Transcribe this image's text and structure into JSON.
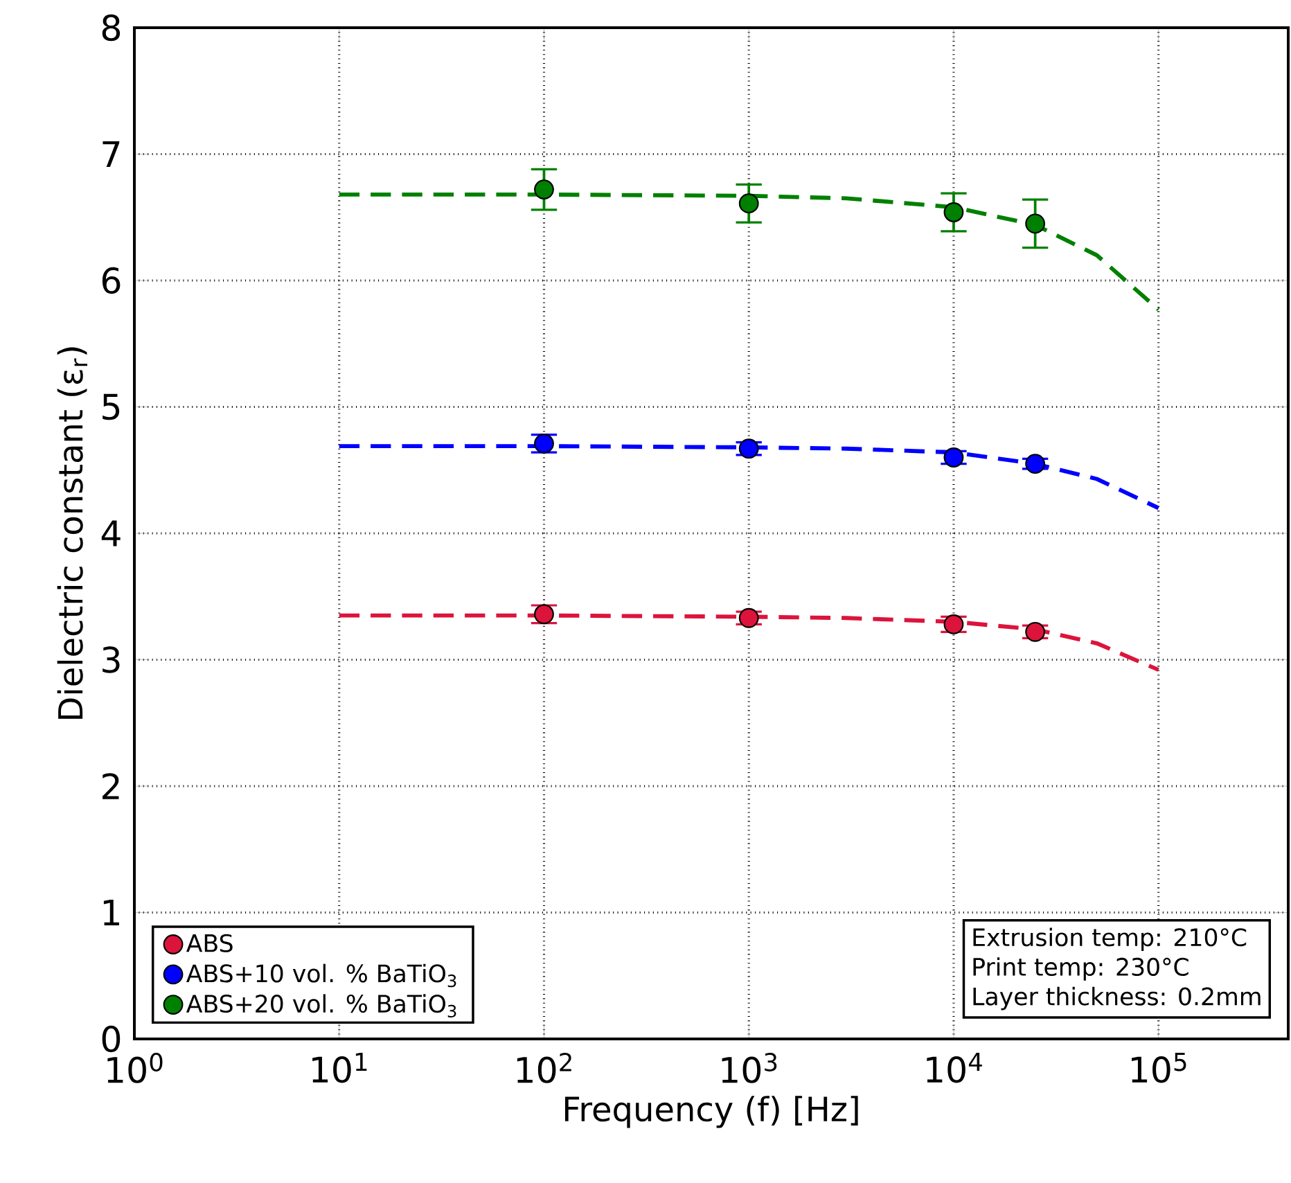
{
  "chart_data": {
    "type": "scatter",
    "xlabel": "Frequency (f) [Hz]",
    "ylabel": "Dielectric constant (ε$_{r}$)",
    "log": "x",
    "grid": true,
    "legend": "bottom left",
    "xlim": [
      1,
      430000
    ],
    "ylim": [
      0,
      8
    ],
    "xticks": [
      {
        "value": 1,
        "label": "10$^{0}$"
      },
      {
        "value": 10,
        "label": "10$^{1}$"
      },
      {
        "value": 100,
        "label": "10$^{2}$"
      },
      {
        "value": 1000,
        "label": "10$^{3}$"
      },
      {
        "value": 10000,
        "label": "10$^{4}$"
      },
      {
        "value": 100000,
        "label": "10$^{5}$"
      }
    ],
    "yticks": [
      0,
      1,
      2,
      3,
      4,
      5,
      6,
      7,
      8
    ],
    "series": [
      {
        "name": "ABS",
        "marker": "circle",
        "color": "#dc143c",
        "x": [
          100,
          1000,
          10000,
          25000
        ],
        "values": [
          3.36,
          3.33,
          3.28,
          3.22
        ],
        "errors": [
          0.07,
          0.05,
          0.06,
          0.05
        ]
      },
      {
        "name": "ABS+10 vol. % BaTiO$_{3}$",
        "marker": "circle",
        "color": "#0000ff",
        "x": [
          100,
          1000,
          10000,
          25000
        ],
        "values": [
          4.71,
          4.67,
          4.6,
          4.55
        ],
        "errors": [
          0.07,
          0.05,
          0.05,
          0.04
        ]
      },
      {
        "name": "ABS+20 vol. % BaTiO$_{3}$",
        "marker": "circle",
        "color": "#008000",
        "x": [
          100,
          1000,
          10000,
          25000
        ],
        "values": [
          6.72,
          6.61,
          6.54,
          6.45
        ],
        "errors": [
          0.16,
          0.15,
          0.15,
          0.19
        ]
      },
      {
        "type": "line",
        "marker": "none",
        "line_style": "dashed",
        "color": "#dc143c",
        "x": [
          10,
          100,
          1000,
          3000,
          10000,
          25000,
          50000,
          100000
        ],
        "values": [
          3.35,
          3.35,
          3.34,
          3.33,
          3.3,
          3.24,
          3.13,
          2.92
        ]
      },
      {
        "type": "line",
        "marker": "none",
        "line_style": "dashed",
        "color": "#0000ff",
        "x": [
          10,
          100,
          1000,
          3000,
          10000,
          25000,
          50000,
          100000
        ],
        "values": [
          4.69,
          4.69,
          4.68,
          4.67,
          4.64,
          4.55,
          4.43,
          4.2
        ]
      },
      {
        "type": "line",
        "marker": "none",
        "line_style": "dashed",
        "color": "#008000",
        "x": [
          10,
          100,
          1000,
          3000,
          10000,
          25000,
          50000,
          100000
        ],
        "values": [
          6.68,
          6.68,
          6.67,
          6.65,
          6.58,
          6.44,
          6.2,
          5.77
        ]
      }
    ],
    "annotations": [
      "Extrusion temp: 210°C",
      "Print temp: 230°C",
      "Layer thickness: 0.2mm"
    ]
  }
}
